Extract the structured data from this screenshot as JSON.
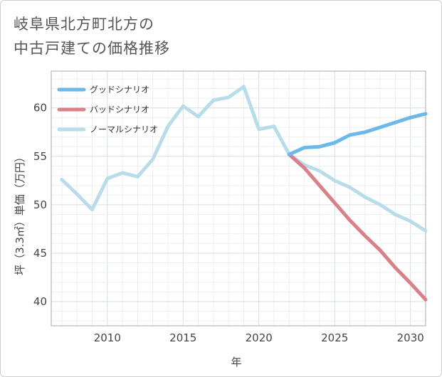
{
  "title": {
    "line1": "岐阜県北方町北方の",
    "line2": "中古戸建ての価格推移"
  },
  "chart_data": {
    "type": "line",
    "xlabel": "年",
    "ylabel": "坪（3.3㎡）単価（万円）",
    "xlim": [
      2006.3,
      2031
    ],
    "ylim": [
      37.5,
      63.8
    ],
    "xticks": [
      2010,
      2015,
      2020,
      2025,
      2030
    ],
    "yticks": [
      40,
      45,
      50,
      55,
      60
    ],
    "grid": true,
    "legend_position": "top-left",
    "series": [
      {
        "name": "グッドシナリオ",
        "color": "#6cb8ea",
        "x": [
          2022,
          2023,
          2024,
          2025,
          2026,
          2027,
          2028,
          2029,
          2030,
          2031
        ],
        "values": [
          55.2,
          55.9,
          56.0,
          56.4,
          57.2,
          57.5,
          58.0,
          58.5,
          59.0,
          59.4
        ]
      },
      {
        "name": "バッドシナリオ",
        "color": "#d9818a",
        "x": [
          2022,
          2023,
          2024,
          2025,
          2026,
          2027,
          2028,
          2029,
          2030,
          2031
        ],
        "values": [
          55.2,
          53.8,
          52.0,
          50.2,
          48.4,
          46.8,
          45.3,
          43.5,
          41.9,
          40.2
        ]
      },
      {
        "name": "ノーマルシナリオ",
        "color": "#b9dde8",
        "x": [
          2007,
          2008,
          2009,
          2010,
          2011,
          2012,
          2013,
          2014,
          2015,
          2016,
          2017,
          2018,
          2019,
          2020,
          2021,
          2022,
          2023,
          2024,
          2025,
          2026,
          2027,
          2028,
          2029,
          2030,
          2031
        ],
        "values": [
          52.6,
          51.1,
          49.5,
          52.7,
          53.3,
          52.9,
          54.7,
          58.1,
          60.2,
          59.1,
          60.8,
          61.1,
          62.2,
          57.8,
          58.1,
          55.2,
          54.1,
          53.5,
          52.5,
          51.8,
          50.8,
          50.0,
          49.0,
          48.3,
          47.3
        ]
      }
    ]
  }
}
